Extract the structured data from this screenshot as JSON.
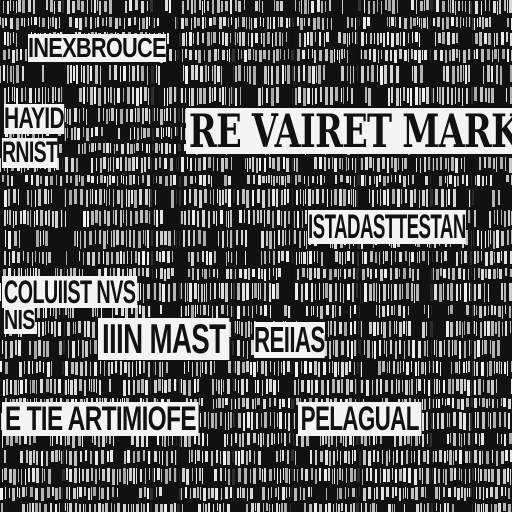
{
  "headlines": {
    "top_left": "INEXBROUCE",
    "market": "RE VAIRET MARKET",
    "left_mid": "HAYID",
    "left_stack": "RNIST",
    "east": "ISTADASTTESTAN",
    "columnist": "COLUIIST NVS",
    "nis": "NIS",
    "mast": "IIIN MAST",
    "renas": "REIIAS",
    "bottom": "E TIE ARTIMIOFE",
    "pelagual": "PELAGUAL"
  },
  "colors": {
    "ink": "#111111",
    "paper": "#f4f4f4"
  }
}
